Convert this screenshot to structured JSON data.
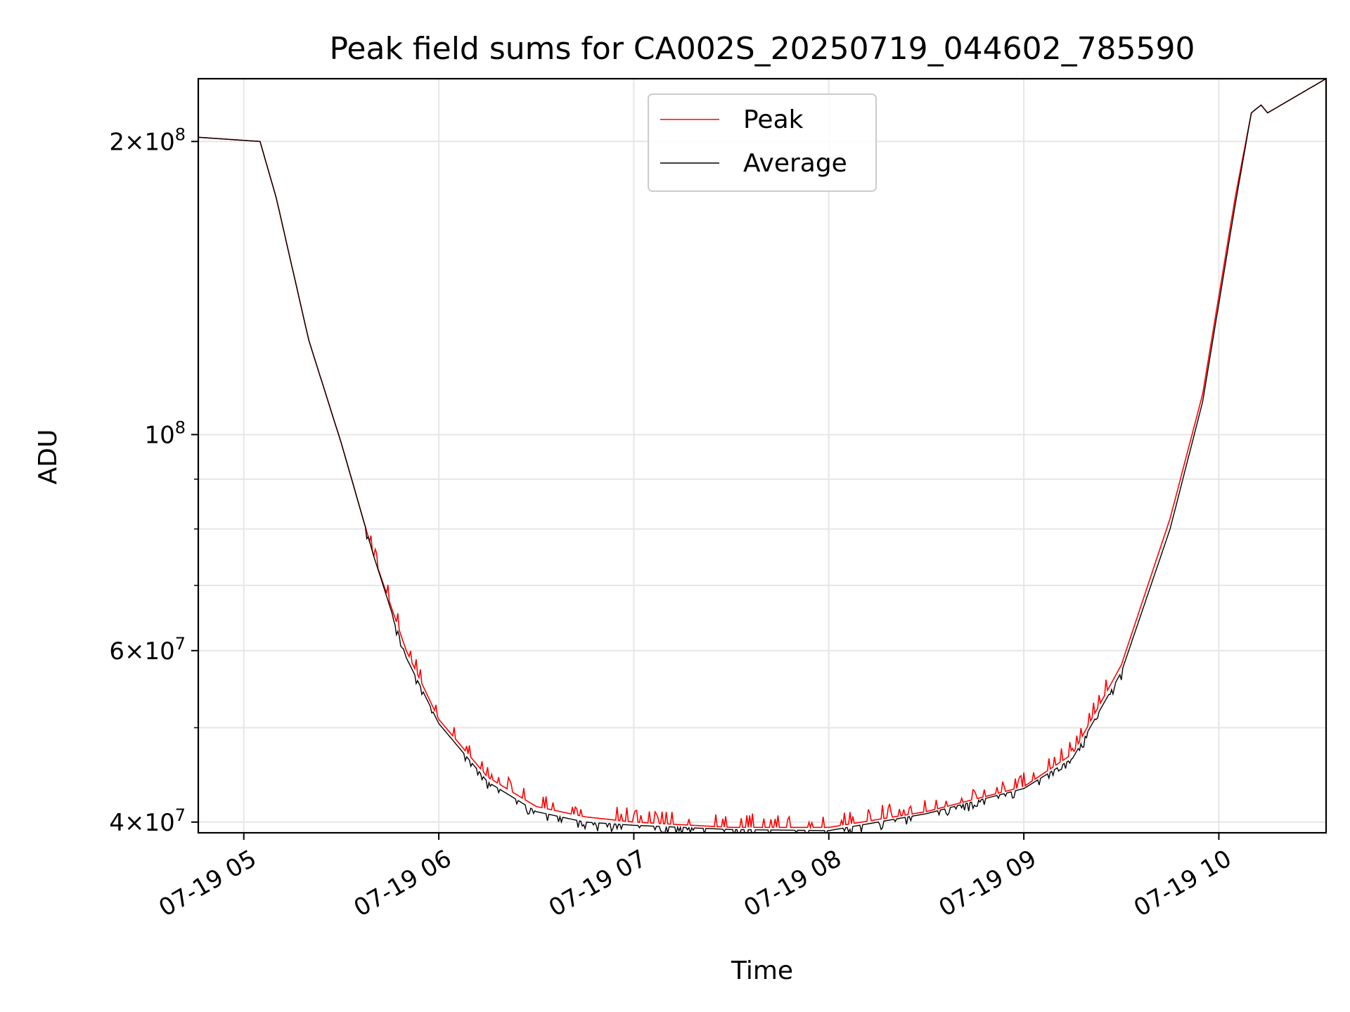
{
  "chart_data": {
    "type": "line",
    "title": "Peak field sums for CA002S_20250719_044602_785590",
    "xlabel": "Time",
    "ylabel": "ADU",
    "yscale": "log",
    "grid": true,
    "legend_position": "top-center",
    "xlim": [
      "2025-07-19 04:46",
      "2025-07-19 10:33"
    ],
    "ylim": [
      39000000,
      232000000
    ],
    "x_ticks": [
      {
        "value": "2025-07-19 05:00",
        "label": "07-19 05"
      },
      {
        "value": "2025-07-19 06:00",
        "label": "07-19 06"
      },
      {
        "value": "2025-07-19 07:00",
        "label": "07-19 07"
      },
      {
        "value": "2025-07-19 08:00",
        "label": "07-19 08"
      },
      {
        "value": "2025-07-19 09:00",
        "label": "07-19 09"
      },
      {
        "value": "2025-07-19 10:00",
        "label": "07-19 10"
      }
    ],
    "y_ticks": [
      {
        "value": 200000000,
        "mant": "2",
        "exp": "8"
      },
      {
        "value": 100000000,
        "mant": "",
        "exp": "8"
      },
      {
        "value": 60000000,
        "mant": "6",
        "exp": "7"
      },
      {
        "value": 40000000,
        "mant": "4",
        "exp": "7"
      }
    ],
    "y_minor_ticks": [
      50000000,
      70000000,
      80000000,
      90000000
    ],
    "series": [
      {
        "name": "Peak",
        "color": "#ff0000",
        "x": [
          "2025-07-19 04:46",
          "2025-07-19 05:05",
          "2025-07-19 05:10",
          "2025-07-19 05:20",
          "2025-07-19 05:30",
          "2025-07-19 05:40",
          "2025-07-19 05:50",
          "2025-07-19 06:00",
          "2025-07-19 06:15",
          "2025-07-19 06:30",
          "2025-07-19 06:45",
          "2025-07-19 07:00",
          "2025-07-19 07:30",
          "2025-07-19 08:00",
          "2025-07-19 08:30",
          "2025-07-19 09:00",
          "2025-07-19 09:15",
          "2025-07-19 09:30",
          "2025-07-19 09:45",
          "2025-07-19 09:55",
          "2025-07-19 10:05",
          "2025-07-19 10:10",
          "2025-07-19 10:13",
          "2025-07-19 10:15",
          "2025-07-19 10:33"
        ],
        "values": [
          202000000,
          200000000,
          175000000,
          125000000,
          98000000,
          75000000,
          60000000,
          51000000,
          44500000,
          41500000,
          40500000,
          40000000,
          39500000,
          39500000,
          41000000,
          43500000,
          47000000,
          58000000,
          82000000,
          110000000,
          175000000,
          214000000,
          218000000,
          214000000,
          232000000
        ],
        "spikes": true
      },
      {
        "name": "Average",
        "color": "#000000",
        "x": [
          "2025-07-19 04:46",
          "2025-07-19 05:05",
          "2025-07-19 05:10",
          "2025-07-19 05:20",
          "2025-07-19 05:30",
          "2025-07-19 05:40",
          "2025-07-19 05:50",
          "2025-07-19 06:00",
          "2025-07-19 06:15",
          "2025-07-19 06:30",
          "2025-07-19 06:45",
          "2025-07-19 07:00",
          "2025-07-19 07:30",
          "2025-07-19 08:00",
          "2025-07-19 08:30",
          "2025-07-19 09:00",
          "2025-07-19 09:15",
          "2025-07-19 09:30",
          "2025-07-19 09:45",
          "2025-07-19 09:55",
          "2025-07-19 10:05",
          "2025-07-19 10:10",
          "2025-07-19 10:13",
          "2025-07-19 10:15",
          "2025-07-19 10:33"
        ],
        "values": [
          202000000,
          200000000,
          175000000,
          125000000,
          98000000,
          75000000,
          59000000,
          50500000,
          44000000,
          41000000,
          40000000,
          39700000,
          39300000,
          39200000,
          40800000,
          43300000,
          46500000,
          57000000,
          80000000,
          108000000,
          172000000,
          214000000,
          218000000,
          214000000,
          232000000
        ],
        "spikes": true
      }
    ]
  }
}
